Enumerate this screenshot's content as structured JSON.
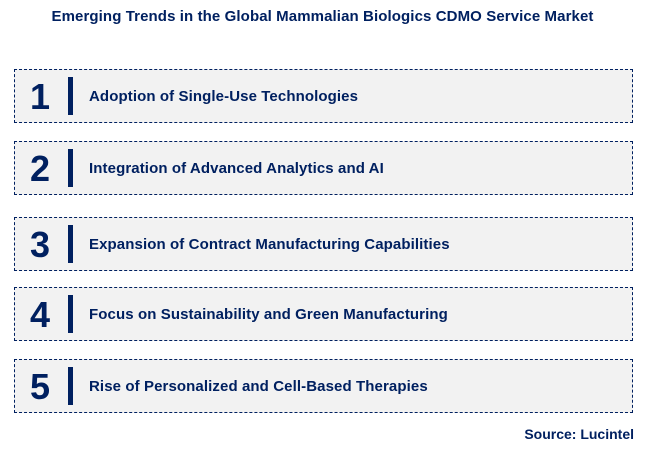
{
  "title": "Emerging Trends in the Global Mammalian Biologics CDMO Service Market",
  "source": "Source: Lucintel",
  "colors": {
    "navy": "#002060",
    "row_background": "#f2f2f2",
    "page_background": "#ffffff"
  },
  "trends": [
    {
      "number": "1",
      "label": "Adoption of Single-Use Technologies"
    },
    {
      "number": "2",
      "label": "Integration of Advanced Analytics and AI"
    },
    {
      "number": "3",
      "label": "Expansion of Contract Manufacturing Capabilities"
    },
    {
      "number": "4",
      "label": "Focus on Sustainability and Green Manufacturing"
    },
    {
      "number": "5",
      "label": "Rise of Personalized and Cell-Based Therapies"
    }
  ]
}
